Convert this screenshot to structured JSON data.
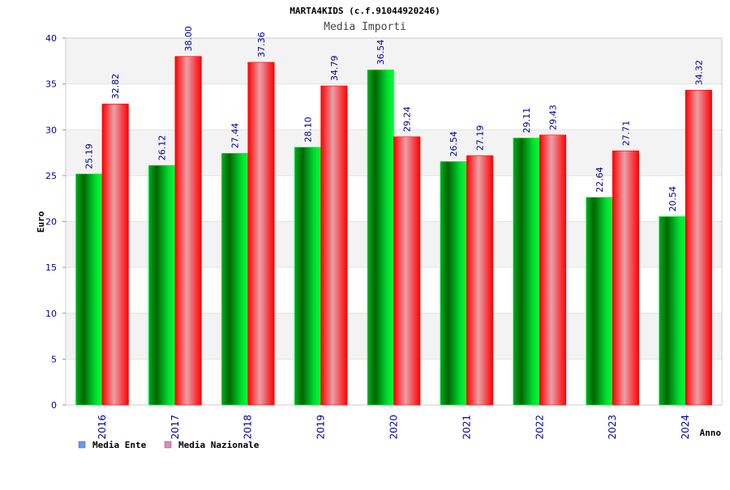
{
  "chart_data": {
    "type": "bar",
    "title": "MARTA4KIDS (c.f.91044920246)",
    "subtitle": "Media Importi",
    "xlabel": "Anno",
    "ylabel": "Euro",
    "categories": [
      "2016",
      "2017",
      "2018",
      "2019",
      "2020",
      "2021",
      "2022",
      "2023",
      "2024"
    ],
    "series": [
      {
        "name": "Media Ente",
        "values": [
          25.19,
          26.12,
          27.44,
          28.1,
          36.54,
          26.54,
          29.11,
          22.64,
          20.54
        ],
        "labels": [
          "25.19",
          "26.12",
          "27.44",
          "28.10",
          "36.54",
          "26.54",
          "29.11",
          "22.64",
          "20.54"
        ]
      },
      {
        "name": "Media Nazionale",
        "values": [
          32.82,
          38.0,
          37.36,
          34.79,
          29.24,
          27.19,
          29.43,
          27.71,
          34.32
        ],
        "labels": [
          "32.82",
          "38.00",
          "37.36",
          "34.79",
          "29.24",
          "27.19",
          "29.43",
          "27.71",
          "34.32"
        ]
      }
    ],
    "ylim": [
      0,
      40
    ],
    "yticks": [
      0,
      5,
      10,
      15,
      20,
      25,
      30,
      35,
      40
    ],
    "grid": true,
    "legend": "bottom-left"
  },
  "colors": {
    "ente_dark": "#006600",
    "ente_light": "#00ff33",
    "naz_dark": "#ff0000",
    "naz_light": "#e8a0a8",
    "legend_ente": "#6699ee",
    "legend_naz": "#dd88bb",
    "axis_text": "#000099",
    "band": "#f3f3f3"
  }
}
